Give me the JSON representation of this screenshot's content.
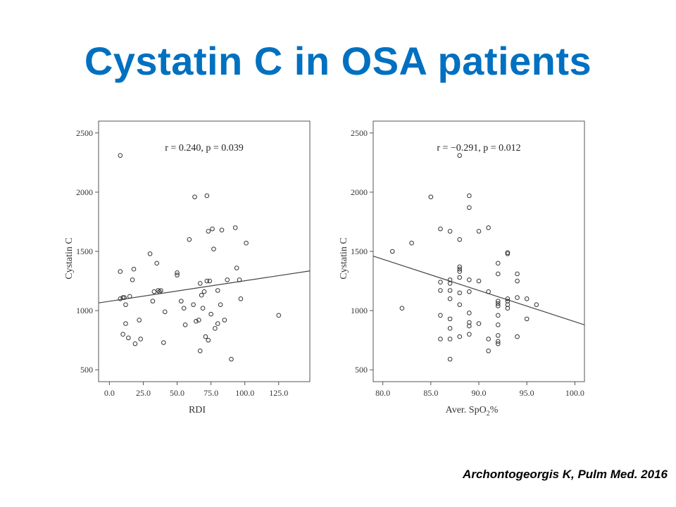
{
  "title": "Cystatin C in OSA patients",
  "citation": "Archontogeorgis K,  Pulm Med. 2016",
  "chart_data": [
    {
      "type": "scatter",
      "xlabel": "RDI",
      "ylabel": "Cystatin C",
      "annotation": "r = 0.240, p = 0.039",
      "xlim": [
        -8,
        148
      ],
      "ylim": [
        400,
        2600
      ],
      "xticks": [
        0,
        25,
        50,
        75,
        100,
        125
      ],
      "xtick_labels": [
        "0.0",
        "25.0",
        "50.0",
        "75.0",
        "100.0",
        "125.0"
      ],
      "yticks": [
        500,
        1000,
        1500,
        2000,
        2500
      ],
      "ytick_labels": [
        "500",
        "1000",
        "1500",
        "2000",
        "2500"
      ],
      "trendline": {
        "x": [
          -8,
          148
        ],
        "y": [
          1065,
          1335
        ]
      },
      "x": [
        8,
        8,
        8,
        10,
        10,
        11,
        12,
        12,
        14,
        15,
        17,
        18,
        19,
        22,
        23,
        30,
        32,
        33,
        35,
        36,
        37,
        38,
        40,
        41,
        50,
        50,
        53,
        55,
        56,
        59,
        62,
        63,
        64,
        66,
        67,
        67,
        68,
        69,
        70,
        71,
        72,
        72,
        73,
        73,
        74,
        75,
        76,
        77,
        78,
        80,
        80,
        82,
        83,
        85,
        87,
        90,
        93,
        94,
        96,
        97,
        101,
        125
      ],
      "y": [
        2310,
        1330,
        1100,
        800,
        1110,
        1110,
        1050,
        890,
        770,
        1120,
        1260,
        1350,
        720,
        920,
        760,
        1480,
        1080,
        1160,
        1400,
        1170,
        1160,
        1170,
        730,
        990,
        1320,
        1300,
        1080,
        1020,
        880,
        1600,
        1050,
        1960,
        910,
        920,
        660,
        1230,
        1130,
        1020,
        1160,
        780,
        1970,
        1250,
        750,
        1670,
        1250,
        970,
        1690,
        1520,
        850,
        890,
        1170,
        1050,
        1680,
        920,
        1260,
        590,
        1700,
        1360,
        1260,
        1100,
        1570,
        960
      ]
    },
    {
      "type": "scatter",
      "xlabel": "Aver. SpO",
      "xlabel_sub": "2",
      "xlabel_suffix": "%",
      "ylabel": "Cystatin C",
      "annotation": "r = −0.291, p = 0.012",
      "xlim": [
        79,
        101
      ],
      "ylim": [
        400,
        2600
      ],
      "xticks": [
        80,
        85,
        90,
        95,
        100
      ],
      "xtick_labels": [
        "80.0",
        "85.0",
        "90.0",
        "95.0",
        "100.0"
      ],
      "yticks": [
        500,
        1000,
        1500,
        2000,
        2500
      ],
      "ytick_labels": [
        "500",
        "1000",
        "1500",
        "2000",
        "2500"
      ],
      "trendline": {
        "x": [
          79,
          101
        ],
        "y": [
          1460,
          880
        ]
      },
      "x": [
        81,
        82,
        83,
        85,
        86,
        86,
        86,
        86,
        86,
        87,
        87,
        87,
        87,
        87,
        87,
        87,
        87,
        87,
        88,
        88,
        88,
        88,
        88,
        88,
        88,
        88,
        88,
        89,
        89,
        89,
        89,
        89,
        89,
        89,
        89,
        90,
        90,
        90,
        91,
        91,
        91,
        91,
        92,
        92,
        92,
        92,
        92,
        92,
        92,
        92,
        92,
        92,
        93,
        93,
        93,
        93,
        93,
        93,
        94,
        94,
        94,
        94,
        95,
        95,
        96
      ],
      "y": [
        1500,
        1020,
        1570,
        1960,
        1690,
        1240,
        1170,
        960,
        760,
        1670,
        1260,
        1230,
        1170,
        1100,
        930,
        850,
        760,
        590,
        2310,
        1600,
        1370,
        1350,
        1330,
        1280,
        1150,
        1050,
        780,
        1970,
        1870,
        1260,
        1160,
        980,
        900,
        870,
        800,
        1670,
        1250,
        890,
        1700,
        1160,
        760,
        660,
        1400,
        1310,
        1080,
        1060,
        1040,
        960,
        880,
        790,
        740,
        720,
        1490,
        1480,
        1100,
        1080,
        1050,
        1020,
        1310,
        1250,
        1110,
        780,
        1100,
        930,
        1050
      ]
    }
  ]
}
